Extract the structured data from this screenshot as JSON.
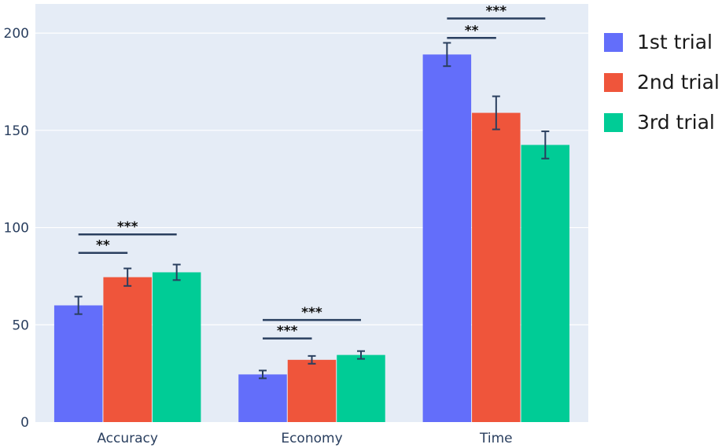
{
  "chart_data": {
    "type": "bar",
    "categories": [
      "Accuracy",
      "Economy",
      "Time"
    ],
    "series": [
      {
        "name": "1st trial",
        "color": "#636efa",
        "values": [
          60,
          24.5,
          189
        ],
        "errors": [
          4.5,
          2,
          6
        ]
      },
      {
        "name": "2nd trial",
        "color": "#ef553b",
        "values": [
          74.5,
          32,
          159
        ],
        "errors": [
          4.5,
          2,
          8.5
        ]
      },
      {
        "name": "3rd trial",
        "color": "#00cc96",
        "values": [
          77,
          34.5,
          142.5
        ],
        "errors": [
          4,
          2,
          7
        ]
      }
    ],
    "ylim": [
      0,
      215
    ],
    "yticks": [
      0,
      50,
      100,
      150,
      200
    ],
    "grid": true,
    "legend_position": "right",
    "significance": [
      {
        "category": "Accuracy",
        "from_series": 0,
        "to_series": 2,
        "y": 96.5,
        "label": "***"
      },
      {
        "category": "Accuracy",
        "from_series": 0,
        "to_series": 1,
        "y": 87,
        "label": "**"
      },
      {
        "category": "Economy",
        "from_series": 0,
        "to_series": 2,
        "y": 52.5,
        "label": "***"
      },
      {
        "category": "Economy",
        "from_series": 0,
        "to_series": 1,
        "y": 43,
        "label": "***"
      },
      {
        "category": "Time",
        "from_series": 0,
        "to_series": 2,
        "y": 207.5,
        "label": "***"
      },
      {
        "category": "Time",
        "from_series": 0,
        "to_series": 1,
        "y": 197.5,
        "label": "**"
      }
    ],
    "colors": {
      "plot_background": "#e5ecf6",
      "gridline": "#ffffff",
      "significance_line": "#2a3f5f",
      "error_bar": "#2a3f5f"
    }
  }
}
